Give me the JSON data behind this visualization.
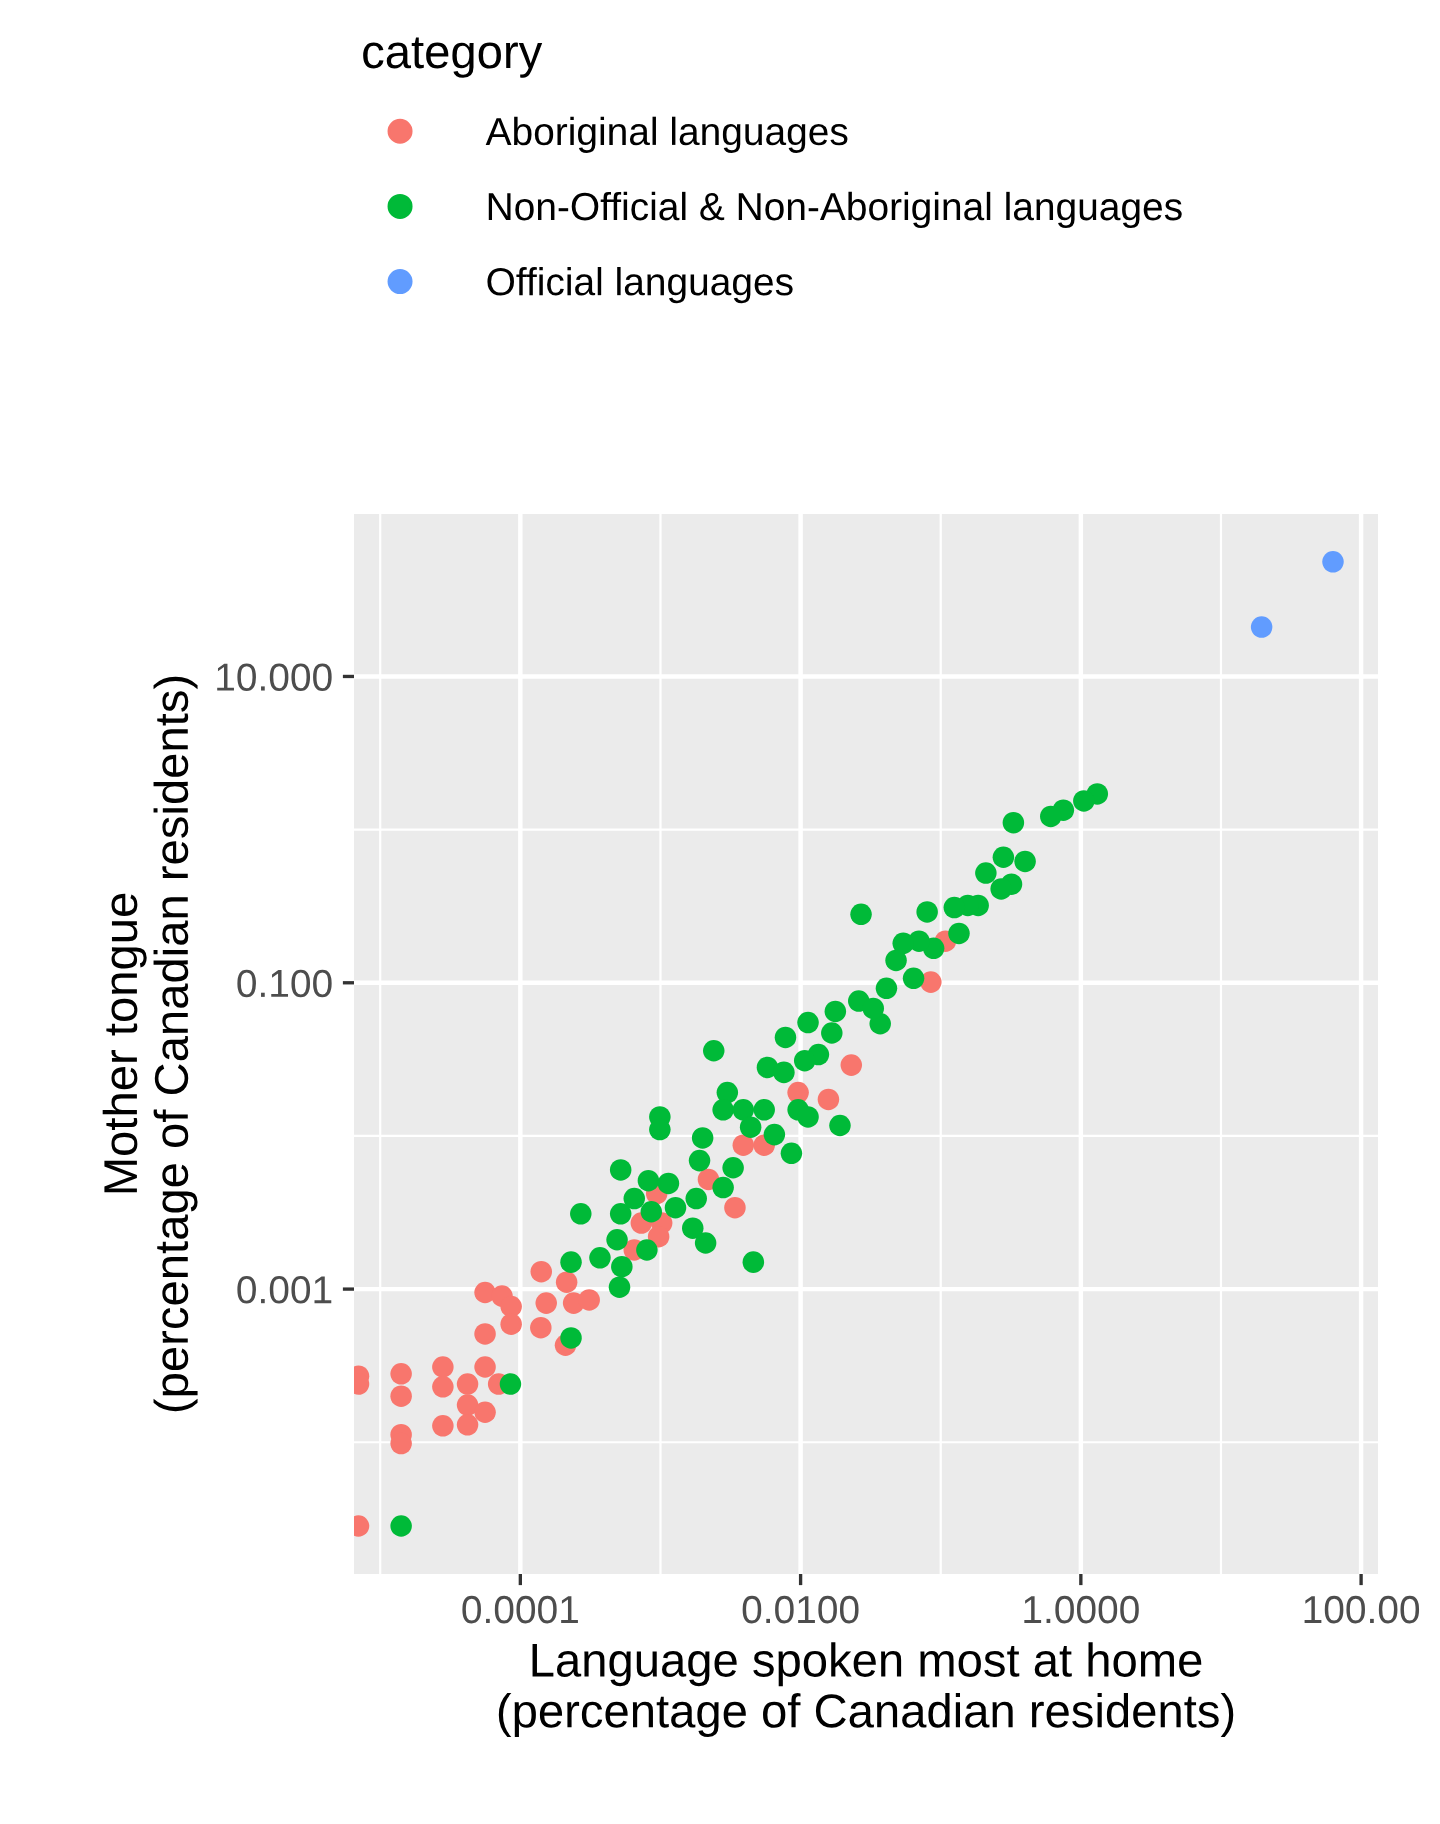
{
  "chart_data": {
    "type": "scatter",
    "xlabel": "Language spoken most at home\n(percentage of Canadian residents)",
    "ylabel": "Mother tongue\n(percentage of Canadian residents)",
    "legend_title": "category",
    "legend": "top",
    "log": "xy",
    "grid": true,
    "marker": "circle",
    "xlim": [
      6.5e-06,
      132
    ],
    "ylim": [
      1.38e-05,
      115
    ],
    "xticks": [
      {
        "value": 1e-05,
        "label": null
      },
      {
        "value": 0.0001,
        "label": "0.0001"
      },
      {
        "value": 0.001,
        "label": null
      },
      {
        "value": 0.01,
        "label": "0.0100"
      },
      {
        "value": 0.1,
        "label": null
      },
      {
        "value": 1,
        "label": "1.0000"
      },
      {
        "value": 10,
        "label": null
      },
      {
        "value": 100,
        "label": "100.00"
      }
    ],
    "yticks": [
      {
        "value": 0.0001,
        "label": null
      },
      {
        "value": 0.001,
        "label": "0.001"
      },
      {
        "value": 0.01,
        "label": null
      },
      {
        "value": 0.1,
        "label": "0.100"
      },
      {
        "value": 1,
        "label": null
      },
      {
        "value": 10,
        "label": "10.000"
      }
    ],
    "series": [
      {
        "name": "Aboriginal languages",
        "color": "#f8766d",
        "x": [
          0.108,
          0.085,
          0.023,
          0.0096,
          0.0158,
          0.0039,
          0.0055,
          0.0022,
          0.0034,
          0.00094,
          0.00073,
          0.00102,
          0.00097,
          0.00065,
          0.000141,
          0.000214,
          5.6e-05,
          7.4e-05,
          8.6e-05,
          8.6e-05,
          5.6e-05,
          0.000153,
          0.00014,
          0.00024,
          0.00031,
          0.00021,
          7e-06,
          7e-06,
          1.41e-05,
          1.41e-05,
          1.41e-05,
          1.41e-05,
          2.8e-05,
          2.8e-05,
          2.8e-05,
          4.2e-05,
          4.2e-05,
          4.2e-05,
          5.6e-05,
          5.6e-05,
          7e-05,
          7e-06
        ],
        "values": [
          0.187,
          0.101,
          0.029,
          0.0192,
          0.0173,
          0.0087,
          0.0087,
          0.0052,
          0.0034,
          0.0042,
          0.0027,
          0.0027,
          0.0022,
          0.0018,
          0.0013,
          0.00111,
          0.00095,
          0.0009,
          0.00077,
          0.00059,
          0.00051,
          0.00081,
          0.00056,
          0.00081,
          0.00085,
          0.00043,
          0.00027,
          0.00024,
          0.00028,
          0.0002,
          0.000112,
          9.8e-05,
          0.00031,
          0.00023,
          0.000128,
          0.00024,
          0.000175,
          0.00013,
          0.00031,
          0.000157,
          0.00024,
          2.84e-05
        ]
      },
      {
        "name": "Non-Official & Non-Aboriginal languages",
        "color": "#00ba38",
        "x": [
          1.31,
          1.05,
          0.75,
          0.61,
          0.33,
          0.4,
          0.28,
          0.21,
          0.32,
          0.27,
          0.185,
          0.156,
          0.125,
          0.08,
          0.135,
          0.027,
          0.089,
          0.07,
          0.054,
          0.048,
          0.064,
          0.041,
          0.026,
          0.0177,
          0.0113,
          0.0078,
          0.0024,
          0.0058,
          0.037,
          0.0167,
          0.033,
          0.0134,
          0.0107,
          0.0076,
          0.003,
          0.0028,
          0.0039,
          0.0055,
          0.0044,
          0.0096,
          0.0113,
          0.0191,
          0.00099,
          0.00099,
          0.002,
          0.0065,
          0.0086,
          0.0019,
          0.0033,
          0.00052,
          0.00082,
          0.00114,
          0.0028,
          0.00065,
          0.0018,
          0.00128,
          0.00086,
          0.00027,
          0.00052,
          0.0017,
          0.00049,
          0.0021,
          0.0008,
          0.00037,
          0.0046,
          0.00023,
          0.00053,
          0.00051,
          0.00023,
          8.5e-05,
          1.41e-05
        ],
        "values": [
          1.71,
          1.54,
          1.34,
          1.22,
          1.11,
          0.62,
          0.66,
          0.52,
          0.44,
          0.41,
          0.32,
          0.32,
          0.31,
          0.29,
          0.21,
          0.28,
          0.168,
          0.187,
          0.181,
          0.14,
          0.107,
          0.092,
          0.076,
          0.065,
          0.055,
          0.044,
          0.036,
          0.028,
          0.054,
          0.047,
          0.068,
          0.034,
          0.031,
          0.026,
          0.0192,
          0.0148,
          0.0148,
          0.0148,
          0.0114,
          0.0148,
          0.0133,
          0.0117,
          0.0133,
          0.011,
          0.0097,
          0.0102,
          0.0077,
          0.0069,
          0.0062,
          0.006,
          0.0051,
          0.0049,
          0.0046,
          0.0039,
          0.0039,
          0.0034,
          0.0032,
          0.0031,
          0.0031,
          0.0025,
          0.0021,
          0.002,
          0.0018,
          0.0016,
          0.0015,
          0.0015,
          0.0014,
          0.00103,
          0.00048,
          0.00024,
          2.84e-05
        ]
      },
      {
        "name": "Official languages",
        "color": "#619cff",
        "x": [
          63,
          19.5
        ],
        "values": [
          56,
          21
        ]
      }
    ]
  }
}
